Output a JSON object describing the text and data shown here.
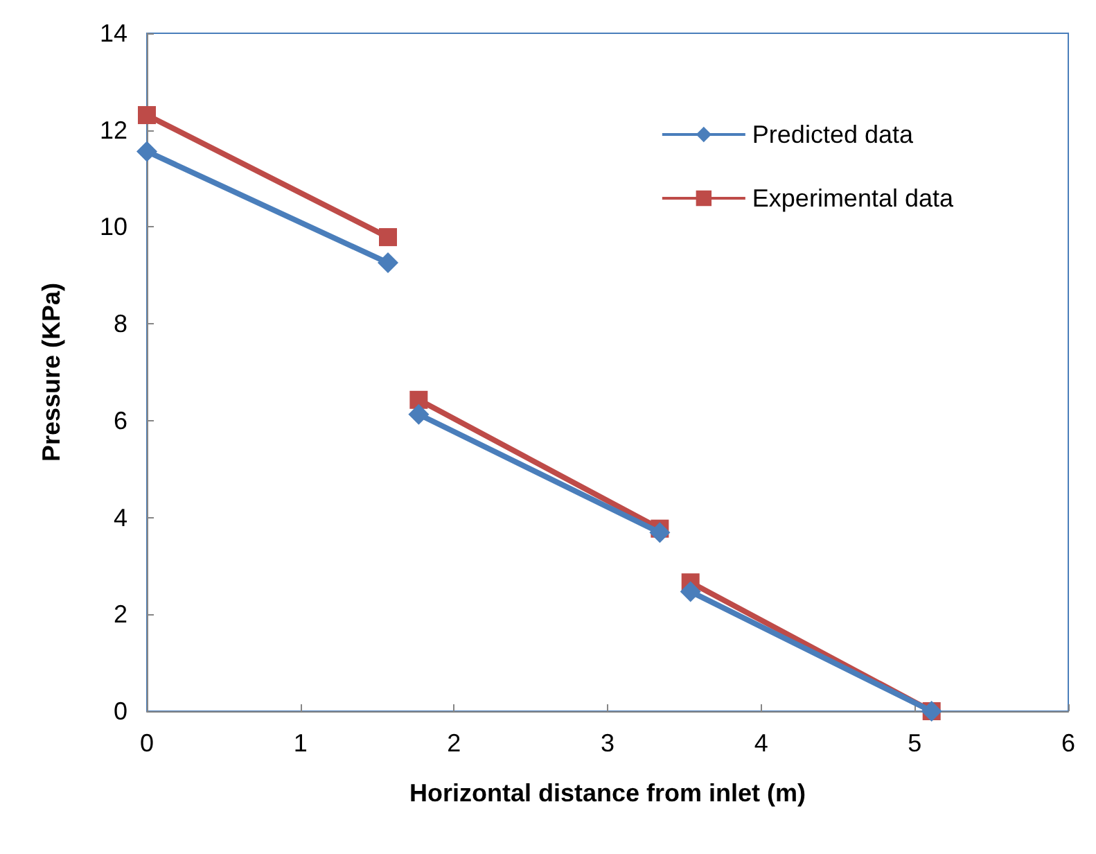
{
  "chart_data": {
    "type": "line",
    "xlabel": "Horizontal distance from inlet (m)",
    "ylabel": "Pressure (KPa)",
    "x": [
      0,
      1.57,
      1.67,
      1.77,
      3.34,
      3.44,
      3.54,
      5.11
    ],
    "series": [
      {
        "name": "Predicted data",
        "color": "#4a7ebb",
        "marker": "diamond",
        "values": [
          11.56,
          9.26,
          null,
          6.13,
          3.69,
          null,
          2.47,
          0
        ]
      },
      {
        "name": "Experimental data",
        "color": "#be4b48",
        "marker": "square",
        "values": [
          12.31,
          9.79,
          null,
          6.43,
          3.77,
          null,
          2.66,
          0
        ]
      }
    ],
    "xlim": [
      0,
      6
    ],
    "xticks": [
      0,
      1,
      2,
      3,
      4,
      5,
      6
    ],
    "ylim": [
      0,
      14
    ],
    "yticks": [
      0,
      2,
      4,
      6,
      8,
      10,
      12,
      14
    ],
    "grid": false,
    "legend": "top right",
    "line_style": "solid"
  }
}
